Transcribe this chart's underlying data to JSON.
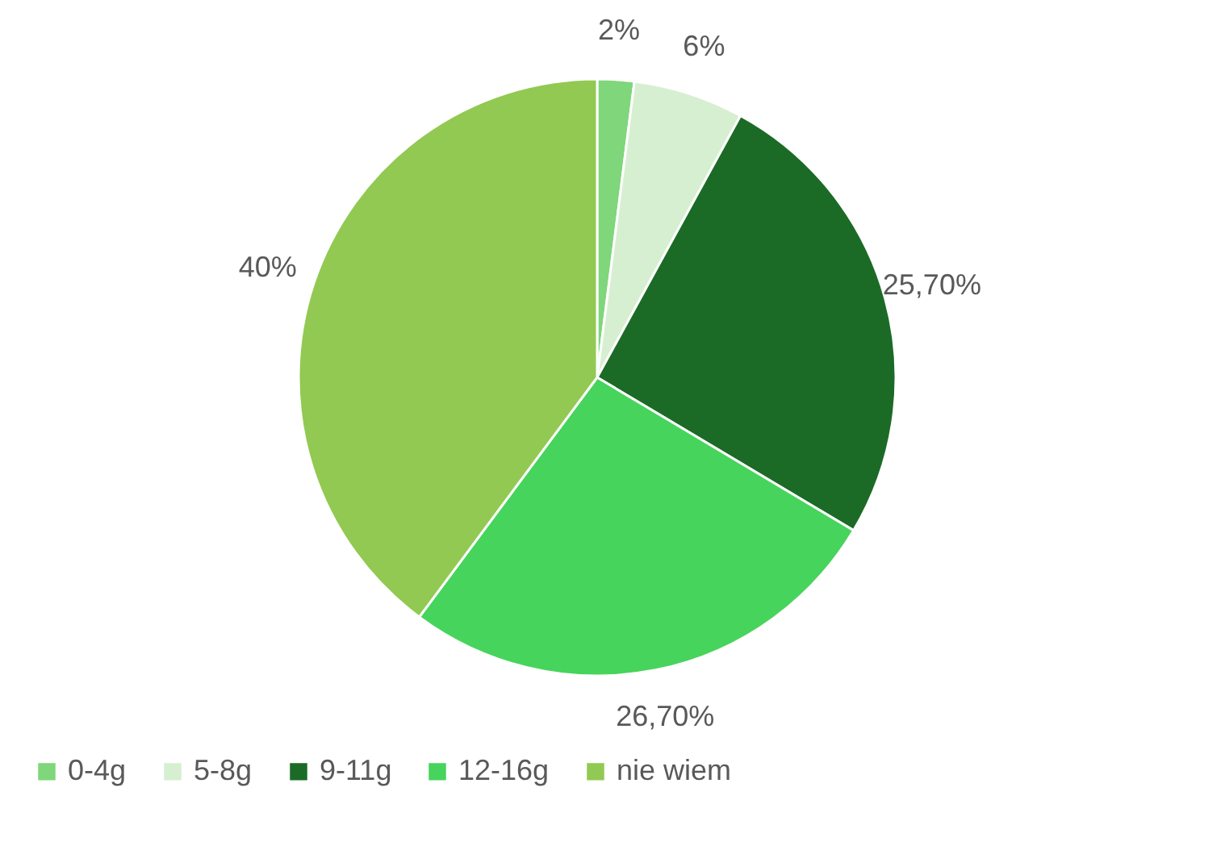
{
  "chart_data": {
    "type": "pie",
    "categories": [
      "0-4g",
      "5-8g",
      "9-11g",
      "12-16g",
      "nie wiem"
    ],
    "values": [
      2,
      6,
      25.7,
      26.7,
      40
    ],
    "colors": [
      "#7fd67b",
      "#d6efd0",
      "#1b6b26",
      "#47d45c",
      "#92c952"
    ],
    "value_labels": [
      "2%",
      "6%",
      "25,70%",
      "26,70%",
      "40%"
    ],
    "legend": "bottom"
  }
}
